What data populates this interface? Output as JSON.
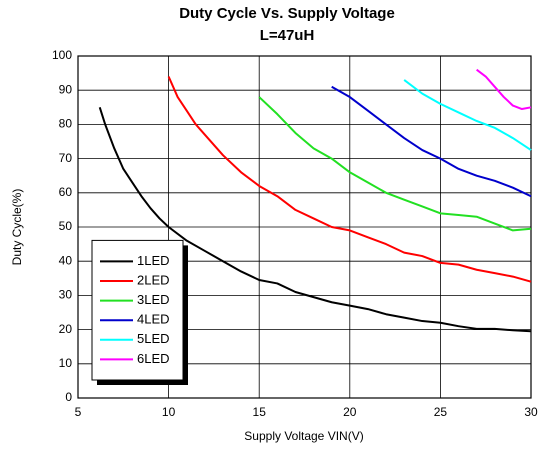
{
  "chart_data": {
    "type": "line",
    "title": "Duty Cycle Vs. Supply Voltage",
    "subtitle": "L=47uH",
    "x_label": "Supply Voltage VIN(V)",
    "y_label": "Duty Cycle(%)",
    "xlim": [
      5,
      30
    ],
    "xticks": [
      5,
      10,
      15,
      20,
      25,
      30
    ],
    "ylim": [
      0,
      100
    ],
    "yticks": [
      0,
      10,
      20,
      30,
      40,
      50,
      60,
      70,
      80,
      90,
      100
    ],
    "grid": true,
    "legend": "lower left",
    "series": [
      {
        "name": "1LED",
        "color": "#000000",
        "x": [
          6.2,
          6.5,
          7,
          7.5,
          8,
          8.5,
          9,
          9.5,
          10,
          11,
          12,
          13,
          14,
          15,
          16,
          17,
          18,
          19,
          20,
          21,
          22,
          23,
          24,
          25,
          26,
          27,
          28,
          29,
          30
        ],
        "values": [
          85,
          80,
          73,
          67,
          63,
          59,
          55.5,
          52.5,
          50,
          46,
          43,
          40,
          37,
          34.5,
          33.5,
          31,
          29.5,
          28,
          27,
          26,
          24.5,
          23.5,
          22.5,
          22,
          21,
          20.2,
          20.2,
          19.8,
          19.5
        ]
      },
      {
        "name": "2LED",
        "color": "#ff0000",
        "x": [
          10,
          10.5,
          11,
          11.5,
          12,
          13,
          14,
          15,
          16,
          17,
          18,
          19,
          20,
          21,
          22,
          23,
          24,
          25,
          26,
          27,
          28,
          29,
          30
        ],
        "values": [
          94,
          88,
          84,
          80,
          77,
          71,
          66,
          62,
          59,
          55,
          52.5,
          50,
          49,
          47,
          45,
          42.5,
          41.5,
          39.5,
          39,
          37.5,
          36.5,
          35.5,
          34
        ]
      },
      {
        "name": "3LED",
        "color": "#22e022",
        "x": [
          15,
          16,
          17,
          18,
          19,
          20,
          21,
          22,
          23,
          24,
          25,
          26,
          27,
          28,
          29,
          30
        ],
        "values": [
          88,
          83,
          77.5,
          73,
          70,
          66,
          63,
          60,
          58,
          56,
          54,
          53.5,
          53,
          51,
          49,
          49.5
        ]
      },
      {
        "name": "4LED",
        "color": "#0000cc",
        "x": [
          19,
          20,
          21,
          22,
          23,
          24,
          25,
          26,
          27,
          28,
          29,
          30
        ],
        "values": [
          91,
          88,
          84,
          80,
          76,
          72.5,
          70,
          67,
          65,
          63.5,
          61.5,
          59
        ]
      },
      {
        "name": "5LED",
        "color": "#00ffff",
        "x": [
          23,
          24,
          25,
          26,
          27,
          28,
          29,
          30
        ],
        "values": [
          93,
          89,
          86,
          83.5,
          81,
          79,
          76,
          72.5
        ]
      },
      {
        "name": "6LED",
        "color": "#ff00ff",
        "x": [
          27,
          27.5,
          28,
          28.5,
          29,
          29.5,
          30
        ],
        "values": [
          96,
          94,
          91,
          88,
          85.5,
          84.5,
          85
        ]
      }
    ]
  }
}
